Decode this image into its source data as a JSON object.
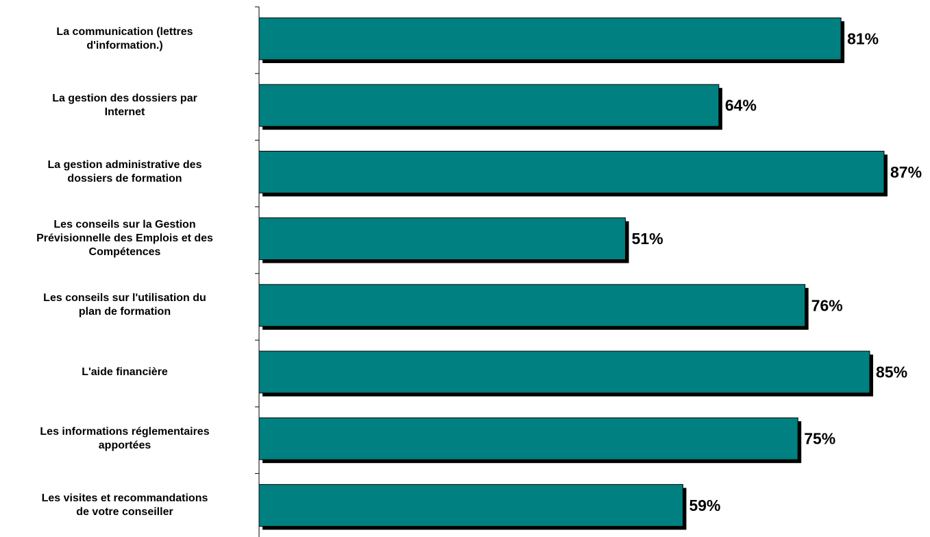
{
  "chart_data": {
    "type": "bar",
    "orientation": "horizontal",
    "categories": [
      "La communication (lettres\nd'information.)",
      "La gestion des dossiers par\nInternet",
      "La gestion administrative des\ndossiers de formation",
      "Les conseils sur la Gestion\nPrévisionnelle des Emplois et des\nCompétences",
      "Les conseils sur l'utilisation du\nplan de formation",
      "L'aide financière",
      "Les informations réglementaires\napportées",
      "Les visites et recommandations\nde votre conseiller"
    ],
    "values": [
      81,
      64,
      87,
      51,
      76,
      85,
      75,
      59
    ],
    "value_labels": [
      "81%",
      "64%",
      "87%",
      "51%",
      "76%",
      "85%",
      "75%",
      "59%"
    ],
    "xlim": [
      0,
      100
    ],
    "grid": false,
    "legend": "none",
    "bar_color": "#008080",
    "shadow_color": "#000000"
  }
}
